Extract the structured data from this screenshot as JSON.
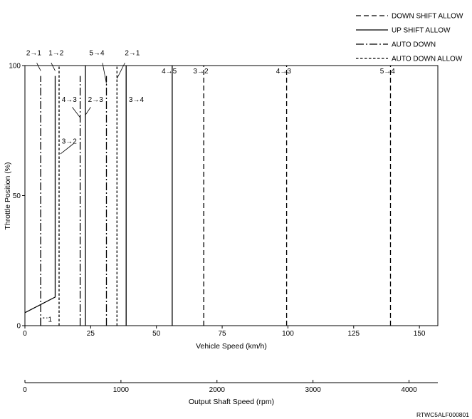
{
  "chart_data": {
    "type": "line",
    "xlabel": "Vehicle Speed (km/h)",
    "ylabel": "Throttle Position (%)",
    "xlim": [
      0,
      157
    ],
    "ylim": [
      0,
      100
    ],
    "x_ticks": [
      "0",
      "25",
      "50",
      "75",
      "100",
      "125",
      "150"
    ],
    "y_ticks": [
      "0",
      "50",
      "100"
    ],
    "secondary_axis": {
      "label": "Output Shaft Speed (rpm)",
      "xlim": [
        0,
        4300
      ],
      "ticks": [
        "0",
        "1000",
        "2000",
        "3000",
        "4000"
      ]
    },
    "legend": {
      "placement": "top-right",
      "entries": [
        {
          "label": "DOWN SHIFT ALLOW",
          "style": "dashed"
        },
        {
          "label": "UP SHIFT ALLOW",
          "style": "solid"
        },
        {
          "label": "AUTO DOWN",
          "style": "dash-dot"
        },
        {
          "label": "AUTO DOWN ALLOW",
          "style": "fine-dashed"
        }
      ]
    },
    "series": [
      {
        "style": "dash-dot",
        "points": [
          [
            6,
            0
          ],
          [
            6,
            96
          ]
        ]
      },
      {
        "style": "dash-dot",
        "points": [
          [
            6,
            0
          ],
          [
            6,
            3
          ],
          [
            8.5,
            3
          ]
        ]
      },
      {
        "style": "solid",
        "points": [
          [
            0,
            5
          ],
          [
            11.5,
            11
          ],
          [
            11.5,
            96
          ]
        ]
      },
      {
        "style": "fine-dashed",
        "points": [
          [
            13,
            0
          ],
          [
            13,
            100
          ]
        ]
      },
      {
        "style": "dash-dot",
        "points": [
          [
            21,
            0
          ],
          [
            21,
            96
          ]
        ]
      },
      {
        "style": "solid",
        "points": [
          [
            23,
            0
          ],
          [
            23,
            100
          ]
        ]
      },
      {
        "style": "dash-dot",
        "points": [
          [
            31,
            0
          ],
          [
            31,
            96
          ]
        ]
      },
      {
        "style": "fine-dashed",
        "points": [
          [
            35,
            0
          ],
          [
            35,
            100
          ]
        ]
      },
      {
        "style": "solid",
        "points": [
          [
            38.5,
            0
          ],
          [
            38.5,
            100
          ]
        ]
      },
      {
        "style": "solid",
        "points": [
          [
            56,
            0
          ],
          [
            56,
            100
          ]
        ]
      },
      {
        "style": "dashed",
        "points": [
          [
            68,
            0
          ],
          [
            68,
            100
          ]
        ]
      },
      {
        "style": "dashed",
        "points": [
          [
            99.5,
            0
          ],
          [
            99.5,
            100
          ]
        ]
      },
      {
        "style": "dashed",
        "points": [
          [
            139,
            0
          ],
          [
            139,
            100
          ]
        ]
      }
    ],
    "annotations": [
      {
        "text": "2→1",
        "x": 0.5,
        "y": 104
      },
      {
        "text": "1→2",
        "x": 9,
        "y": 104
      },
      {
        "text": "5→4",
        "x": 24.5,
        "y": 104
      },
      {
        "text": "2→1",
        "x": 38,
        "y": 104
      },
      {
        "text": "4→5",
        "x": 52,
        "y": 97
      },
      {
        "text": "3→2",
        "x": 64,
        "y": 97
      },
      {
        "text": "4→3",
        "x": 95.5,
        "y": 97
      },
      {
        "text": "5→4",
        "x": 135,
        "y": 97
      },
      {
        "text": "4→3",
        "x": 14,
        "y": 86
      },
      {
        "text": "2→3",
        "x": 24,
        "y": 86
      },
      {
        "text": "3→4",
        "x": 39.5,
        "y": 86
      },
      {
        "text": "3→2",
        "x": 14,
        "y": 70
      },
      {
        "text": "1",
        "x": 8.8,
        "y": 1.5
      }
    ],
    "grid": false
  },
  "figure_code": "RTWC5ALF000801"
}
